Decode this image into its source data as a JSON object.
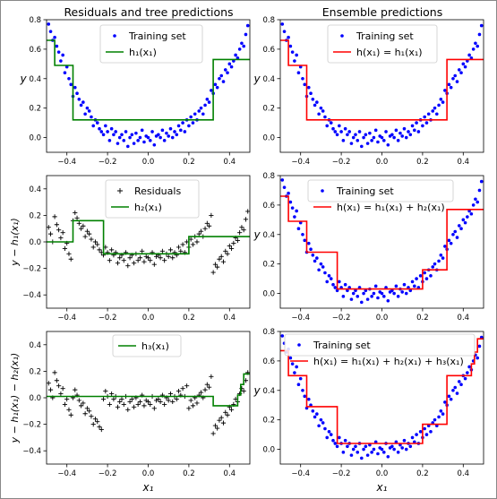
{
  "figure": {
    "column_titles": [
      "Residuals and tree predictions",
      "Ensemble predictions"
    ],
    "xlabel": "x₁"
  },
  "colors": {
    "points": "#0000ff",
    "tree_left": "#008000",
    "tree_right": "#ff0000",
    "residual": "#000000"
  },
  "chart_data": [
    {
      "type": "scatter",
      "panel": "left-1",
      "title": "Residuals and tree predictions",
      "xlabel": "",
      "ylabel": "y",
      "xlim": [
        -0.5,
        0.5
      ],
      "ylim": [
        -0.1,
        0.8
      ],
      "xticks": [
        -0.4,
        -0.2,
        0.0,
        0.2,
        0.4
      ],
      "yticks": [
        0.0,
        0.2,
        0.4,
        0.6,
        0.8
      ],
      "xtick_labels": [
        "−0.4",
        "−0.2",
        "0.0",
        "0.2",
        "0.4"
      ],
      "ytick_labels": [
        "0.0",
        "0.2",
        "0.4",
        "0.6",
        "0.8"
      ],
      "legend_position": "upper-center",
      "series": [
        {
          "name": "Training set",
          "kind": "points",
          "color": "#0000ff",
          "x": [
            -0.49,
            -0.48,
            -0.47,
            -0.46,
            -0.45,
            -0.44,
            -0.43,
            -0.42,
            -0.41,
            -0.4,
            -0.39,
            -0.38,
            -0.37,
            -0.36,
            -0.35,
            -0.34,
            -0.33,
            -0.32,
            -0.31,
            -0.3,
            -0.29,
            -0.28,
            -0.27,
            -0.26,
            -0.25,
            -0.24,
            -0.23,
            -0.22,
            -0.21,
            -0.2,
            -0.19,
            -0.18,
            -0.17,
            -0.16,
            -0.15,
            -0.14,
            -0.13,
            -0.12,
            -0.11,
            -0.1,
            -0.09,
            -0.08,
            -0.07,
            -0.06,
            -0.05,
            -0.04,
            -0.03,
            -0.02,
            -0.01,
            0.0,
            0.01,
            0.02,
            0.03,
            0.04,
            0.05,
            0.06,
            0.07,
            0.08,
            0.09,
            0.1,
            0.11,
            0.12,
            0.13,
            0.14,
            0.15,
            0.16,
            0.17,
            0.18,
            0.19,
            0.2,
            0.21,
            0.22,
            0.23,
            0.24,
            0.25,
            0.26,
            0.27,
            0.28,
            0.29,
            0.3,
            0.31,
            0.32,
            0.33,
            0.34,
            0.35,
            0.36,
            0.37,
            0.38,
            0.39,
            0.4,
            0.41,
            0.42,
            0.43,
            0.44,
            0.45,
            0.46,
            0.47,
            0.48,
            0.49
          ],
          "y": [
            0.77,
            0.72,
            0.66,
            0.68,
            0.62,
            0.58,
            0.52,
            0.56,
            0.44,
            0.48,
            0.4,
            0.36,
            0.28,
            0.34,
            0.3,
            0.26,
            0.22,
            0.24,
            0.16,
            0.2,
            0.18,
            0.14,
            0.08,
            0.12,
            0.1,
            0.06,
            0.04,
            0.02,
            0.08,
            0.04,
            -0.02,
            0.06,
            0.02,
            0.04,
            -0.04,
            0.0,
            0.02,
            -0.02,
            0.04,
            -0.06,
            0.0,
            0.02,
            -0.04,
            0.03,
            -0.02,
            0.0,
            0.05,
            -0.03,
            0.01,
            0.0,
            -0.02,
            0.04,
            -0.05,
            0.01,
            0.02,
            0.0,
            0.05,
            -0.02,
            0.03,
            0.01,
            0.06,
            0.0,
            0.04,
            0.02,
            0.08,
            0.05,
            0.1,
            0.04,
            0.12,
            0.08,
            0.14,
            0.1,
            0.16,
            0.12,
            0.18,
            0.2,
            0.16,
            0.22,
            0.26,
            0.24,
            0.32,
            0.3,
            0.36,
            0.34,
            0.4,
            0.42,
            0.38,
            0.46,
            0.44,
            0.5,
            0.48,
            0.52,
            0.56,
            0.54,
            0.6,
            0.64,
            0.62,
            0.7,
            0.76
          ]
        },
        {
          "name": "h₁(x₁)",
          "kind": "step",
          "color": "#008000",
          "x": [
            -0.5,
            -0.46,
            -0.46,
            -0.37,
            -0.37,
            0.32,
            0.32,
            0.5
          ],
          "y": [
            0.66,
            0.66,
            0.49,
            0.49,
            0.12,
            0.12,
            0.53,
            0.53
          ]
        }
      ]
    },
    {
      "type": "scatter",
      "panel": "right-1",
      "title": "Ensemble predictions",
      "xlabel": "",
      "ylabel": "y",
      "xlim": [
        -0.5,
        0.5
      ],
      "ylim": [
        -0.1,
        0.8
      ],
      "xticks": [
        -0.4,
        -0.2,
        0.0,
        0.2,
        0.4
      ],
      "yticks": [
        0.0,
        0.2,
        0.4,
        0.6,
        0.8
      ],
      "xtick_labels": [
        "−0.4",
        "−0.2",
        "0.0",
        "0.2",
        "0.4"
      ],
      "ytick_labels": [
        "0.0",
        "0.2",
        "0.4",
        "0.6",
        "0.8"
      ],
      "legend_position": "upper-center",
      "series": [
        {
          "name": "Training set",
          "kind": "points",
          "color": "#0000ff",
          "same_as": "left-1"
        },
        {
          "name": "h(x₁) = h₁(x₁)",
          "kind": "step",
          "color": "#ff0000",
          "x": [
            -0.5,
            -0.46,
            -0.46,
            -0.37,
            -0.37,
            0.32,
            0.32,
            0.5
          ],
          "y": [
            0.66,
            0.66,
            0.49,
            0.49,
            0.12,
            0.12,
            0.53,
            0.53
          ]
        }
      ]
    },
    {
      "type": "scatter",
      "panel": "left-2",
      "title": "",
      "xlabel": "",
      "ylabel": "y − h₁(x₁)",
      "xlim": [
        -0.5,
        0.5
      ],
      "ylim": [
        -0.5,
        0.5
      ],
      "xticks": [
        -0.4,
        -0.2,
        0.0,
        0.2,
        0.4
      ],
      "yticks": [
        -0.4,
        -0.2,
        0.0,
        0.2,
        0.4
      ],
      "xtick_labels": [
        "−0.4",
        "−0.2",
        "0.0",
        "0.2",
        "0.4"
      ],
      "ytick_labels": [
        "−0.4",
        "−0.2",
        "0.0",
        "0.2",
        "0.4"
      ],
      "legend_position": "upper-center",
      "series": [
        {
          "name": "Residuals",
          "kind": "plus",
          "color": "#000000",
          "residual_of": "left-1"
        },
        {
          "name": "h₂(x₁)",
          "kind": "step",
          "color": "#008000",
          "x": [
            -0.5,
            -0.37,
            -0.37,
            -0.22,
            -0.22,
            0.2,
            0.2,
            0.5
          ],
          "y": [
            0.0,
            0.0,
            0.16,
            0.16,
            -0.09,
            -0.09,
            0.04,
            0.04
          ]
        }
      ]
    },
    {
      "type": "scatter",
      "panel": "right-2",
      "title": "",
      "xlabel": "",
      "ylabel": "y",
      "xlim": [
        -0.5,
        0.5
      ],
      "ylim": [
        -0.1,
        0.8
      ],
      "xticks": [
        -0.4,
        -0.2,
        0.0,
        0.2,
        0.4
      ],
      "yticks": [
        0.0,
        0.2,
        0.4,
        0.6,
        0.8
      ],
      "xtick_labels": [
        "−0.4",
        "−0.2",
        "0.0",
        "0.2",
        "0.4"
      ],
      "ytick_labels": [
        "0.0",
        "0.2",
        "0.4",
        "0.6",
        "0.8"
      ],
      "legend_position": "upper-center",
      "series": [
        {
          "name": "Training set",
          "kind": "points",
          "color": "#0000ff",
          "same_as": "left-1"
        },
        {
          "name": "h(x₁) = h₁(x₁) + h₂(x₁)",
          "kind": "step",
          "color": "#ff0000",
          "x": [
            -0.5,
            -0.46,
            -0.46,
            -0.37,
            -0.37,
            -0.22,
            -0.22,
            0.2,
            0.2,
            0.32,
            0.32,
            0.5
          ],
          "y": [
            0.66,
            0.66,
            0.49,
            0.49,
            0.28,
            0.28,
            0.03,
            0.03,
            0.16,
            0.16,
            0.57,
            0.57
          ]
        }
      ]
    },
    {
      "type": "scatter",
      "panel": "left-3",
      "title": "",
      "xlabel": "x₁",
      "ylabel": "y − h₁(x₁) − h₂(x₁)",
      "xlim": [
        -0.5,
        0.5
      ],
      "ylim": [
        -0.5,
        0.5
      ],
      "xticks": [
        -0.4,
        -0.2,
        0.0,
        0.2,
        0.4
      ],
      "yticks": [
        -0.4,
        -0.2,
        0.0,
        0.2,
        0.4
      ],
      "xtick_labels": [
        "−0.4",
        "−0.2",
        "0.0",
        "0.2",
        "0.4"
      ],
      "ytick_labels": [
        "−0.4",
        "−0.2",
        "0.0",
        "0.2",
        "0.4"
      ],
      "legend_position": "upper-center",
      "series": [
        {
          "name": "",
          "kind": "plus",
          "color": "#000000",
          "residual_of": "left-2"
        },
        {
          "name": "h₃(x₁)",
          "kind": "step",
          "color": "#008000",
          "x": [
            -0.5,
            0.32,
            0.32,
            0.44,
            0.44,
            0.455,
            0.455,
            0.47,
            0.47,
            0.5
          ],
          "y": [
            0.01,
            0.01,
            -0.06,
            -0.06,
            0.02,
            0.02,
            0.1,
            0.1,
            0.18,
            0.18
          ]
        }
      ]
    },
    {
      "type": "scatter",
      "panel": "right-3",
      "title": "",
      "xlabel": "x₁",
      "ylabel": "y",
      "xlim": [
        -0.5,
        0.5
      ],
      "ylim": [
        -0.1,
        0.8
      ],
      "xticks": [
        -0.4,
        -0.2,
        0.0,
        0.2,
        0.4
      ],
      "yticks": [
        0.0,
        0.2,
        0.4,
        0.6,
        0.8
      ],
      "xtick_labels": [
        "−0.4",
        "−0.2",
        "0.0",
        "0.2",
        "0.4"
      ],
      "ytick_labels": [
        "0.0",
        "0.2",
        "0.4",
        "0.6",
        "0.8"
      ],
      "legend_position": "upper-center",
      "series": [
        {
          "name": "Training set",
          "kind": "points",
          "color": "#0000ff",
          "same_as": "left-1"
        },
        {
          "name": "h(x₁) = h₁(x₁) + h₂(x₁) + h₃(x₁)",
          "kind": "step",
          "color": "#ff0000",
          "x": [
            -0.5,
            -0.46,
            -0.46,
            -0.37,
            -0.37,
            -0.22,
            -0.22,
            0.2,
            0.2,
            0.32,
            0.32,
            0.44,
            0.44,
            0.455,
            0.455,
            0.47,
            0.47,
            0.5
          ],
          "y": [
            0.67,
            0.67,
            0.5,
            0.5,
            0.29,
            0.29,
            0.04,
            0.04,
            0.17,
            0.17,
            0.5,
            0.5,
            0.58,
            0.58,
            0.66,
            0.66,
            0.75,
            0.75
          ]
        }
      ]
    }
  ]
}
